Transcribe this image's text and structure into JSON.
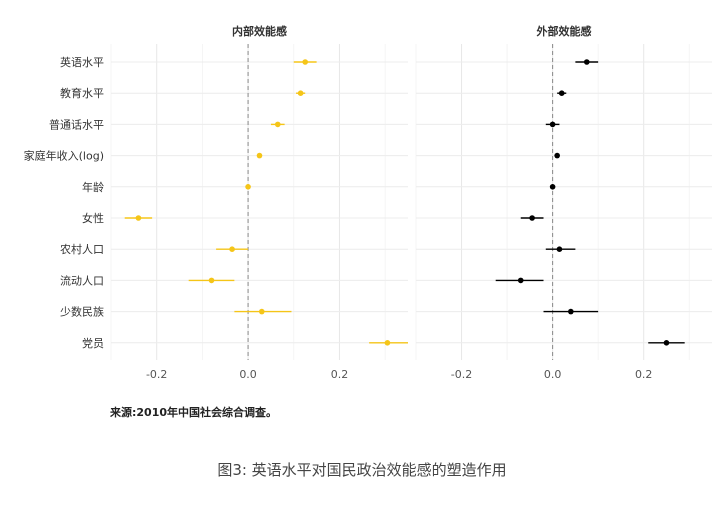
{
  "chart_data": {
    "type": "scatter",
    "variables": [
      "英语水平",
      "教育水平",
      "普通话水平",
      "家庭年收入(log)",
      "年龄",
      "女性",
      "农村人口",
      "流动人口",
      "少数民族",
      "党员"
    ],
    "panels": [
      {
        "title": "内部效能感",
        "color": "#f5c518",
        "xlim": [
          -0.3,
          0.35
        ],
        "xticks": [
          -0.2,
          0.0,
          0.2
        ],
        "xtick_labels": [
          "-0.2",
          "0.0",
          "0.2"
        ],
        "points": [
          {
            "variable": "英语水平",
            "estimate": 0.125,
            "ci": [
              0.1,
              0.15
            ]
          },
          {
            "variable": "教育水平",
            "estimate": 0.115,
            "ci": [
              0.105,
              0.125
            ]
          },
          {
            "variable": "普通话水平",
            "estimate": 0.065,
            "ci": [
              0.05,
              0.08
            ]
          },
          {
            "variable": "家庭年收入(log)",
            "estimate": 0.025,
            "ci": [
              0.02,
              0.03
            ]
          },
          {
            "variable": "年龄",
            "estimate": 0.0,
            "ci": [
              -0.005,
              0.005
            ]
          },
          {
            "variable": "女性",
            "estimate": -0.24,
            "ci": [
              -0.27,
              -0.21
            ]
          },
          {
            "variable": "农村人口",
            "estimate": -0.035,
            "ci": [
              -0.07,
              0.0
            ]
          },
          {
            "variable": "流动人口",
            "estimate": -0.08,
            "ci": [
              -0.13,
              -0.03
            ]
          },
          {
            "variable": "少数民族",
            "estimate": 0.03,
            "ci": [
              -0.03,
              0.095
            ]
          },
          {
            "variable": "党员",
            "estimate": 0.305,
            "ci": [
              0.265,
              0.35
            ]
          }
        ]
      },
      {
        "title": "外部效能感",
        "color": "#000000",
        "xlim": [
          -0.3,
          0.35
        ],
        "xticks": [
          -0.2,
          0.0,
          0.2
        ],
        "xtick_labels": [
          "-0.2",
          "0.0",
          "0.2"
        ],
        "points": [
          {
            "variable": "英语水平",
            "estimate": 0.075,
            "ci": [
              0.05,
              0.1
            ]
          },
          {
            "variable": "教育水平",
            "estimate": 0.02,
            "ci": [
              0.01,
              0.03
            ]
          },
          {
            "variable": "普通话水平",
            "estimate": 0.0,
            "ci": [
              -0.015,
              0.015
            ]
          },
          {
            "variable": "家庭年收入(log)",
            "estimate": 0.01,
            "ci": [
              0.005,
              0.015
            ]
          },
          {
            "variable": "年龄",
            "estimate": 0.0,
            "ci": [
              -0.003,
              0.003
            ]
          },
          {
            "variable": "女性",
            "estimate": -0.045,
            "ci": [
              -0.07,
              -0.02
            ]
          },
          {
            "variable": "农村人口",
            "estimate": 0.015,
            "ci": [
              -0.015,
              0.05
            ]
          },
          {
            "variable": "流动人口",
            "estimate": -0.07,
            "ci": [
              -0.125,
              -0.02
            ]
          },
          {
            "variable": "少数民族",
            "estimate": 0.04,
            "ci": [
              -0.02,
              0.1
            ]
          },
          {
            "variable": "党员",
            "estimate": 0.25,
            "ci": [
              0.21,
              0.29
            ]
          }
        ]
      }
    ],
    "reference_line": 0,
    "grid": true,
    "legend": "none"
  },
  "source_note": "来源:2010年中国社会综合调查。",
  "caption": "图3: 英语水平对国民政治效能感的塑造作用"
}
